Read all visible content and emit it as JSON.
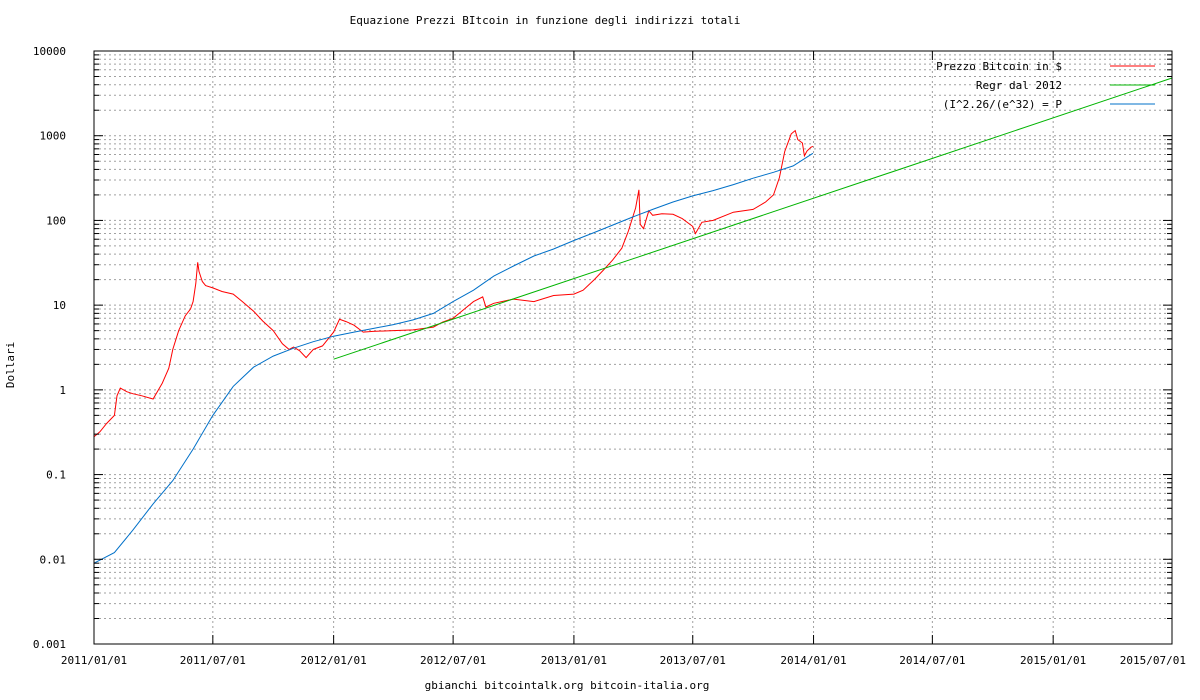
{
  "chart_data": {
    "type": "line",
    "title": "Equazione Prezzi BItcoin in funzione degli indirizzi totali",
    "ylabel": "Dollari",
    "xlabel": "",
    "footer": "gbianchi bitcointalk.org bitcoin-italia.org",
    "yscale": "log",
    "ylim": [
      0.001,
      10000
    ],
    "xlim": [
      "2011-01-01",
      "2015-07-01"
    ],
    "grid": true,
    "legend_position": "top-right",
    "y_ticks": [
      "0.001",
      "0.01",
      "0.1",
      "1",
      "10",
      "100",
      "1000",
      "10000"
    ],
    "x_ticks": [
      {
        "date": "2011-01-01",
        "label": "2011/01/01"
      },
      {
        "date": "2011-07-01",
        "label": "2011/07/01"
      },
      {
        "date": "2012-01-01",
        "label": "2012/01/01"
      },
      {
        "date": "2012-07-01",
        "label": "2012/07/01"
      },
      {
        "date": "2013-01-01",
        "label": "2013/01/01"
      },
      {
        "date": "2013-07-01",
        "label": "2013/07/01"
      },
      {
        "date": "2014-01-01",
        "label": "2014/01/01"
      },
      {
        "date": "2014-07-01",
        "label": "2014/07/01"
      },
      {
        "date": "2015-01-01",
        "label": "2015/01/01"
      },
      {
        "date": "2015-07-01",
        "label": "2015/07/01"
      }
    ],
    "series": [
      {
        "name": "Prezzo Bitcoin in $",
        "color": "#ff0000",
        "points": [
          [
            "2011-01-01",
            0.28
          ],
          [
            "2011-01-10",
            0.32
          ],
          [
            "2011-01-20",
            0.4
          ],
          [
            "2011-02-01",
            0.5
          ],
          [
            "2011-02-05",
            0.85
          ],
          [
            "2011-02-10",
            1.05
          ],
          [
            "2011-02-20",
            0.95
          ],
          [
            "2011-03-01",
            0.9
          ],
          [
            "2011-03-15",
            0.85
          ],
          [
            "2011-04-01",
            0.78
          ],
          [
            "2011-04-15",
            1.2
          ],
          [
            "2011-04-25",
            1.8
          ],
          [
            "2011-05-01",
            3.0
          ],
          [
            "2011-05-10",
            5.0
          ],
          [
            "2011-05-20",
            7.5
          ],
          [
            "2011-05-28",
            9.0
          ],
          [
            "2011-06-01",
            11.0
          ],
          [
            "2011-06-05",
            18.0
          ],
          [
            "2011-06-08",
            32.0
          ],
          [
            "2011-06-10",
            25.0
          ],
          [
            "2011-06-15",
            19.0
          ],
          [
            "2011-06-20",
            17.0
          ],
          [
            "2011-07-01",
            16.0
          ],
          [
            "2011-07-15",
            14.5
          ],
          [
            "2011-08-01",
            13.5
          ],
          [
            "2011-08-15",
            11.0
          ],
          [
            "2011-09-01",
            8.5
          ],
          [
            "2011-09-15",
            6.5
          ],
          [
            "2011-10-01",
            5.0
          ],
          [
            "2011-10-15",
            3.5
          ],
          [
            "2011-10-25",
            3.0
          ],
          [
            "2011-11-01",
            3.2
          ],
          [
            "2011-11-10",
            2.9
          ],
          [
            "2011-11-20",
            2.4
          ],
          [
            "2011-12-01",
            3.0
          ],
          [
            "2011-12-15",
            3.3
          ],
          [
            "2012-01-01",
            4.8
          ],
          [
            "2012-01-10",
            6.8
          ],
          [
            "2012-01-20",
            6.4
          ],
          [
            "2012-02-01",
            5.8
          ],
          [
            "2012-02-15",
            4.8
          ],
          [
            "2012-03-01",
            4.9
          ],
          [
            "2012-04-01",
            5.0
          ],
          [
            "2012-05-01",
            5.1
          ],
          [
            "2012-06-01",
            5.5
          ],
          [
            "2012-06-15",
            6.3
          ],
          [
            "2012-07-01",
            7.0
          ],
          [
            "2012-07-15",
            8.6
          ],
          [
            "2012-08-01",
            11.0
          ],
          [
            "2012-08-15",
            12.5
          ],
          [
            "2012-08-20",
            9.5
          ],
          [
            "2012-09-01",
            10.5
          ],
          [
            "2012-10-01",
            11.8
          ],
          [
            "2012-11-01",
            11.0
          ],
          [
            "2012-12-01",
            13.0
          ],
          [
            "2013-01-01",
            13.5
          ],
          [
            "2013-01-15",
            15.0
          ],
          [
            "2013-02-01",
            20.0
          ],
          [
            "2013-02-15",
            26.0
          ],
          [
            "2013-03-01",
            34.0
          ],
          [
            "2013-03-15",
            47.0
          ],
          [
            "2013-03-25",
            75.0
          ],
          [
            "2013-04-05",
            140.0
          ],
          [
            "2013-04-10",
            230.0
          ],
          [
            "2013-04-12",
            90.0
          ],
          [
            "2013-04-17",
            80.0
          ],
          [
            "2013-04-25",
            130.0
          ],
          [
            "2013-05-01",
            115.0
          ],
          [
            "2013-05-15",
            120.0
          ],
          [
            "2013-06-01",
            118.0
          ],
          [
            "2013-06-15",
            105.0
          ],
          [
            "2013-07-01",
            85.0
          ],
          [
            "2013-07-05",
            70.0
          ],
          [
            "2013-07-15",
            95.0
          ],
          [
            "2013-08-01",
            100.0
          ],
          [
            "2013-09-01",
            125.0
          ],
          [
            "2013-10-01",
            135.0
          ],
          [
            "2013-10-20",
            165.0
          ],
          [
            "2013-11-01",
            200.0
          ],
          [
            "2013-11-10",
            320.0
          ],
          [
            "2013-11-18",
            650.0
          ],
          [
            "2013-11-28",
            1050.0
          ],
          [
            "2013-12-04",
            1150.0
          ],
          [
            "2013-12-08",
            900.0
          ],
          [
            "2013-12-15",
            820.0
          ],
          [
            "2013-12-18",
            580.0
          ],
          [
            "2013-12-22",
            660.0
          ],
          [
            "2013-12-28",
            730.0
          ],
          [
            "2013-12-31",
            750.0
          ]
        ]
      },
      {
        "name": "Regr dal 2012",
        "color": "#00b400",
        "points": [
          [
            "2012-01-01",
            2.3
          ],
          [
            "2015-07-01",
            4800.0
          ]
        ]
      },
      {
        "name": "(I^2.26/(e^32) = P",
        "color": "#0070c8",
        "points": [
          [
            "2011-01-01",
            0.009
          ],
          [
            "2011-02-01",
            0.012
          ],
          [
            "2011-03-01",
            0.022
          ],
          [
            "2011-04-01",
            0.045
          ],
          [
            "2011-05-01",
            0.085
          ],
          [
            "2011-06-01",
            0.2
          ],
          [
            "2011-07-01",
            0.5
          ],
          [
            "2011-08-01",
            1.1
          ],
          [
            "2011-09-01",
            1.85
          ],
          [
            "2011-10-01",
            2.5
          ],
          [
            "2011-11-01",
            3.1
          ],
          [
            "2011-12-01",
            3.7
          ],
          [
            "2012-01-01",
            4.3
          ],
          [
            "2012-02-01",
            4.8
          ],
          [
            "2012-03-01",
            5.3
          ],
          [
            "2012-04-01",
            5.9
          ],
          [
            "2012-05-01",
            6.7
          ],
          [
            "2012-06-01",
            8.0
          ],
          [
            "2012-07-01",
            11.0
          ],
          [
            "2012-08-01",
            15.0
          ],
          [
            "2012-09-01",
            22.0
          ],
          [
            "2012-10-01",
            29.0
          ],
          [
            "2012-11-01",
            38.0
          ],
          [
            "2012-12-01",
            46.0
          ],
          [
            "2013-01-01",
            58.0
          ],
          [
            "2013-02-01",
            72.0
          ],
          [
            "2013-03-01",
            88.0
          ],
          [
            "2013-04-01",
            110.0
          ],
          [
            "2013-05-01",
            135.0
          ],
          [
            "2013-06-01",
            165.0
          ],
          [
            "2013-07-01",
            195.0
          ],
          [
            "2013-08-01",
            225.0
          ],
          [
            "2013-09-01",
            265.0
          ],
          [
            "2013-10-01",
            315.0
          ],
          [
            "2013-11-01",
            370.0
          ],
          [
            "2013-12-01",
            440.0
          ],
          [
            "2013-12-31",
            620.0
          ]
        ]
      }
    ]
  }
}
